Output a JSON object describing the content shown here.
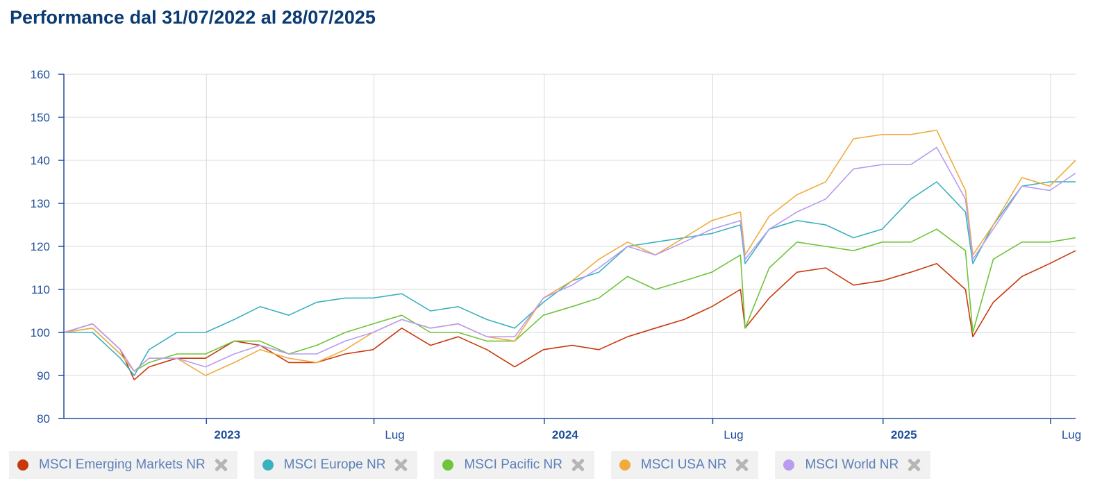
{
  "chart_data": {
    "type": "line",
    "title": "Performance dal 31/07/2022 al 28/07/2025",
    "x_range": [
      "2022-07-31",
      "2025-07-28"
    ],
    "ylim": [
      80,
      160
    ],
    "y_ticks": [
      80,
      90,
      100,
      110,
      120,
      130,
      140,
      150,
      160
    ],
    "x_ticks": [
      {
        "date": "2023-01-01",
        "label": "2023",
        "bold": true
      },
      {
        "date": "2023-07-01",
        "label": "Lug",
        "bold": false
      },
      {
        "date": "2024-01-01",
        "label": "2024",
        "bold": true
      },
      {
        "date": "2024-07-01",
        "label": "Lug",
        "bold": false
      },
      {
        "date": "2025-01-01",
        "label": "2025",
        "bold": true
      },
      {
        "date": "2025-07-01",
        "label": "Lug",
        "bold": false
      }
    ],
    "grid": true,
    "legend_position": "bottom",
    "x": [
      "2022-07-31",
      "2022-08-31",
      "2022-09-30",
      "2022-10-15",
      "2022-10-31",
      "2022-11-30",
      "2022-12-31",
      "2023-01-31",
      "2023-02-28",
      "2023-03-31",
      "2023-04-30",
      "2023-05-31",
      "2023-06-30",
      "2023-07-31",
      "2023-08-31",
      "2023-09-30",
      "2023-10-31",
      "2023-11-30",
      "2023-12-31",
      "2024-01-31",
      "2024-02-29",
      "2024-03-31",
      "2024-04-30",
      "2024-05-31",
      "2024-06-30",
      "2024-07-31",
      "2024-08-05",
      "2024-08-31",
      "2024-09-30",
      "2024-10-31",
      "2024-11-30",
      "2024-12-31",
      "2025-01-31",
      "2025-02-28",
      "2025-03-31",
      "2025-04-08",
      "2025-04-30",
      "2025-05-31",
      "2025-06-30",
      "2025-07-28"
    ],
    "series": [
      {
        "name": "MSCI Emerging Markets NR",
        "color": "#c7390c",
        "values": [
          100,
          102,
          96,
          89,
          92,
          94,
          94,
          98,
          97,
          93,
          93,
          95,
          96,
          101,
          97,
          99,
          96,
          92,
          96,
          97,
          96,
          99,
          101,
          103,
          106,
          110,
          101,
          108,
          114,
          115,
          111,
          112,
          114,
          116,
          110,
          99,
          107,
          113,
          116,
          119
        ]
      },
      {
        "name": "MSCI Europe NR",
        "color": "#3ab1bf",
        "values": [
          100,
          100,
          94,
          90,
          96,
          100,
          100,
          103,
          106,
          104,
          107,
          108,
          108,
          109,
          105,
          106,
          103,
          101,
          107,
          112,
          114,
          120,
          121,
          122,
          123,
          125,
          116,
          124,
          126,
          125,
          122,
          124,
          131,
          135,
          128,
          116,
          125,
          134,
          135,
          135
        ]
      },
      {
        "name": "MSCI Pacific NR",
        "color": "#6ec43a",
        "values": [
          100,
          101,
          95,
          91,
          93,
          95,
          95,
          98,
          98,
          95,
          97,
          100,
          102,
          104,
          100,
          100,
          98,
          98,
          104,
          106,
          108,
          113,
          110,
          112,
          114,
          118,
          101,
          115,
          121,
          120,
          119,
          121,
          121,
          124,
          119,
          100,
          117,
          121,
          121,
          122
        ]
      },
      {
        "name": "MSCI USA NR",
        "color": "#f0ab3f",
        "values": [
          100,
          101,
          95,
          91,
          94,
          94,
          90,
          93,
          96,
          94,
          93,
          96,
          100,
          103,
          101,
          102,
          99,
          98,
          108,
          112,
          117,
          121,
          118,
          122,
          126,
          128,
          118,
          127,
          132,
          135,
          145,
          146,
          146,
          147,
          133,
          118,
          125,
          136,
          134,
          140
        ]
      },
      {
        "name": "MSCI World NR",
        "color": "#b89cf0",
        "values": [
          100,
          102,
          96,
          91,
          94,
          94,
          92,
          95,
          97,
          95,
          95,
          98,
          100,
          103,
          101,
          102,
          99,
          99,
          108,
          111,
          115,
          120,
          118,
          121,
          124,
          126,
          117,
          124,
          128,
          131,
          138,
          139,
          139,
          143,
          131,
          117,
          124,
          134,
          133,
          137
        ]
      }
    ]
  }
}
